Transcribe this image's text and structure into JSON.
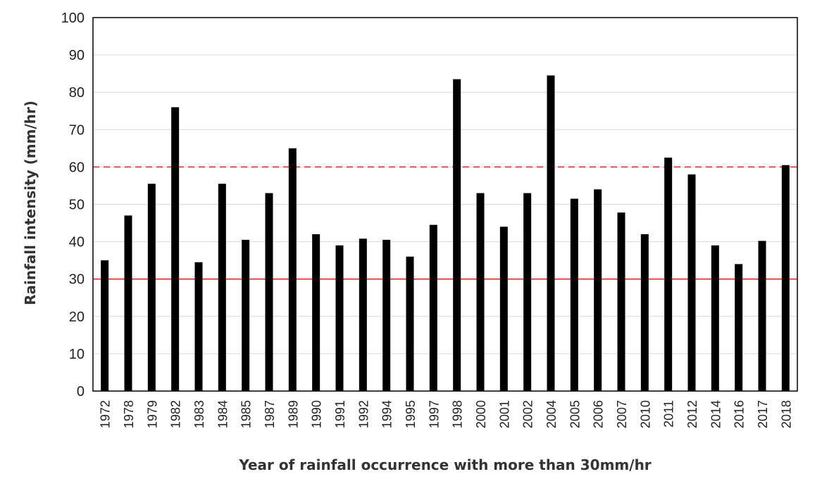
{
  "chart_data": {
    "type": "bar",
    "title": "",
    "xlabel": "Year of rainfall occurrence with more than 30mm/hr",
    "ylabel": "Rainfall intensity (mm/hr)",
    "ylim": [
      0,
      100
    ],
    "yticks": [
      "0",
      "10",
      "20",
      "30",
      "40",
      "50",
      "60",
      "70",
      "80",
      "90",
      "100"
    ],
    "grid": true,
    "categories": [
      "1972",
      "1978",
      "1979",
      "1982",
      "1983",
      "1984",
      "1985",
      "1987",
      "1989",
      "1990",
      "1991",
      "1992",
      "1994",
      "1995",
      "1997",
      "1998",
      "2000",
      "2001",
      "2002",
      "2004",
      "2005",
      "2006",
      "2007",
      "2010",
      "2011",
      "2012",
      "2014",
      "2016",
      "2017",
      "2018"
    ],
    "values": [
      35,
      47,
      55.5,
      76,
      34.5,
      55.5,
      40.5,
      53,
      65,
      42,
      39,
      40.8,
      40.5,
      36,
      44.5,
      83.5,
      53,
      44,
      53,
      84.5,
      51.5,
      54,
      47.8,
      42,
      62.5,
      58,
      39,
      34,
      40.2,
      60.5
    ],
    "bar_color": "#000000",
    "reference_lines": [
      {
        "value": 60,
        "style": "dashed",
        "color": "#e02020"
      },
      {
        "value": 30,
        "style": "solid",
        "color": "#e02020"
      }
    ]
  }
}
